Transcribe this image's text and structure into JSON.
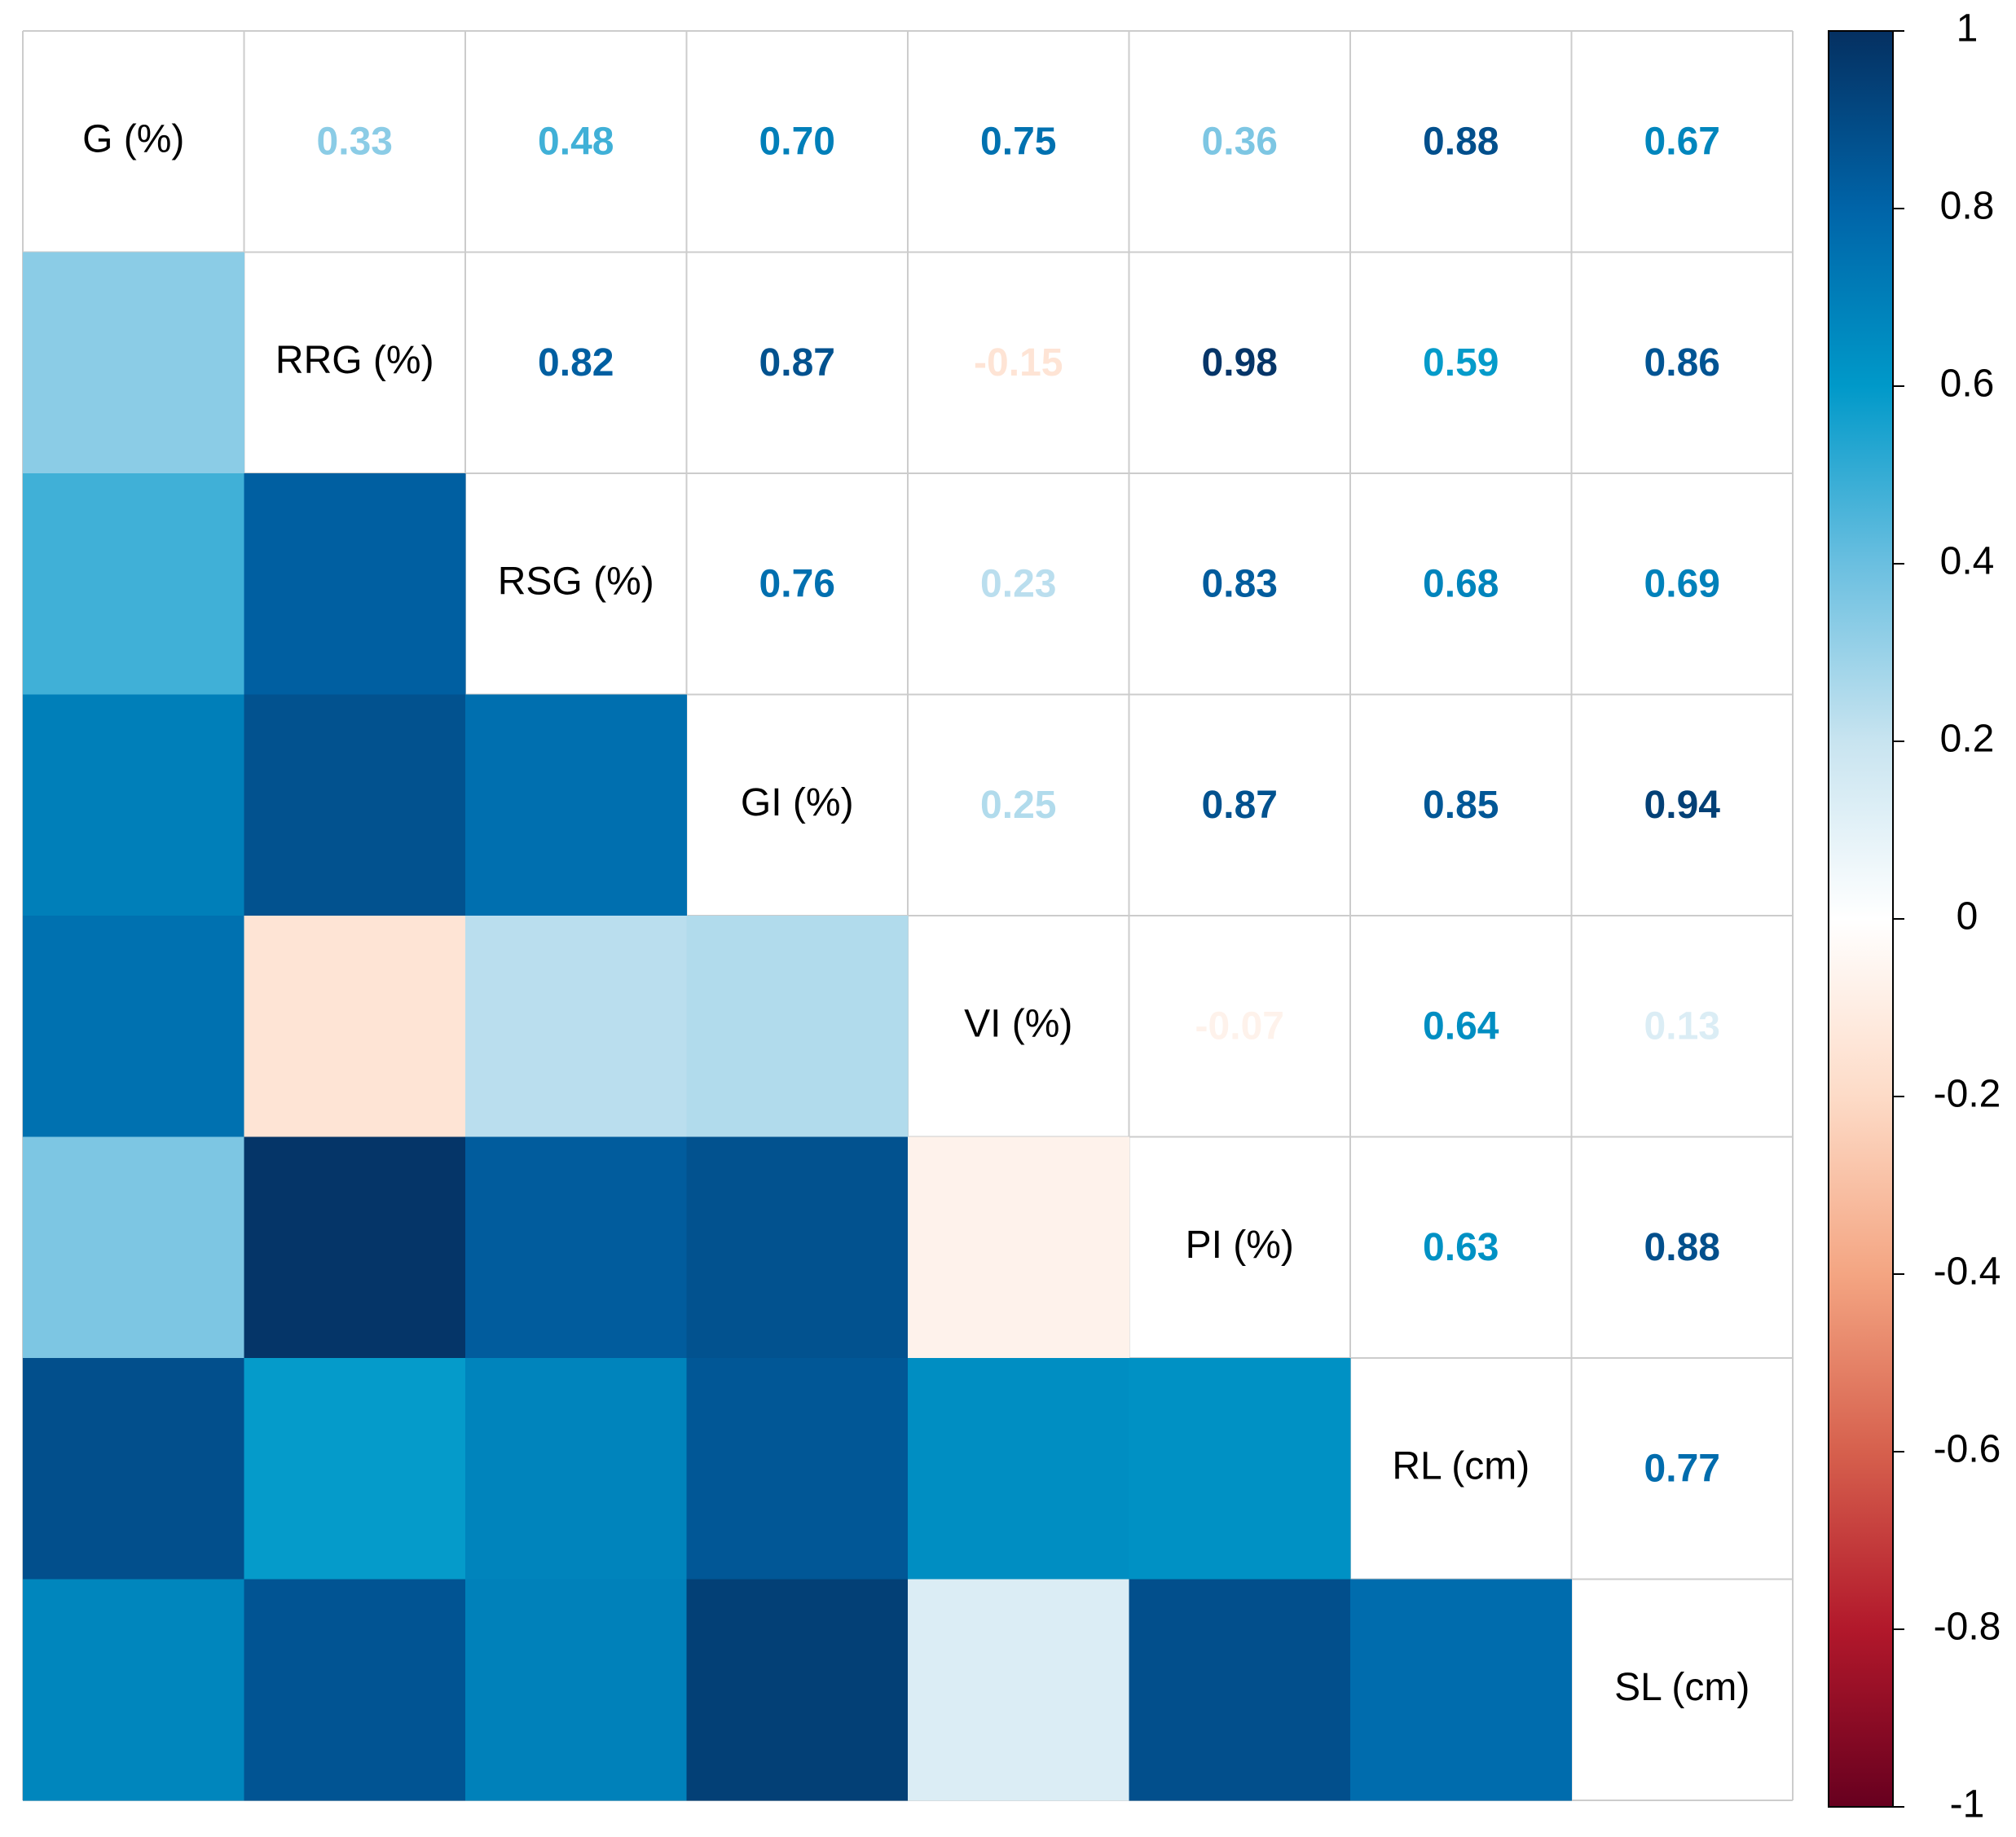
{
  "chart_data": {
    "type": "heatmap",
    "variables": [
      "G (%)",
      "RRG (%)",
      "RSG (%)",
      "GI (%)",
      "VI (%)",
      "PI (%)",
      "RL (cm)",
      "SL (cm)"
    ],
    "values": [
      [
        0.33,
        0.48,
        0.7,
        0.75,
        0.36,
        0.88,
        0.67
      ],
      [
        0.82,
        0.87,
        -0.15,
        0.98,
        0.59,
        0.86
      ],
      [
        0.76,
        0.23,
        0.83,
        0.68,
        0.69
      ],
      [
        0.25,
        0.87,
        0.85,
        0.94
      ],
      [
        -0.07,
        0.64,
        0.13
      ],
      [
        0.63,
        0.88
      ],
      [
        0.77
      ]
    ],
    "value_labels": [
      [
        "0.33",
        "0.48",
        "0.70",
        "0.75",
        "0.36",
        "0.88",
        "0.67"
      ],
      [
        "0.82",
        "0.87",
        "-0.15",
        "0.98",
        "0.59",
        "0.86"
      ],
      [
        "0.76",
        "0.23",
        "0.83",
        "0.68",
        "0.69"
      ],
      [
        "0.25",
        "0.87",
        "0.85",
        "0.94"
      ],
      [
        "-0.07",
        "0.64",
        "0.13"
      ],
      [
        "0.63",
        "0.88"
      ],
      [
        "0.77"
      ]
    ],
    "clim": [
      -1,
      1
    ],
    "cticks": [
      -1,
      -0.8,
      -0.6,
      -0.4,
      -0.2,
      0,
      0.2,
      0.4,
      0.6,
      0.8,
      1
    ],
    "colormap": [
      "#67001F",
      "#B2182B",
      "#D6604D",
      "#F4A582",
      "#FDDBC7",
      "#FFFFFF",
      "#C8E4F0",
      "#6ABFE0",
      "#0099C9",
      "#0064A8",
      "#053061"
    ]
  }
}
